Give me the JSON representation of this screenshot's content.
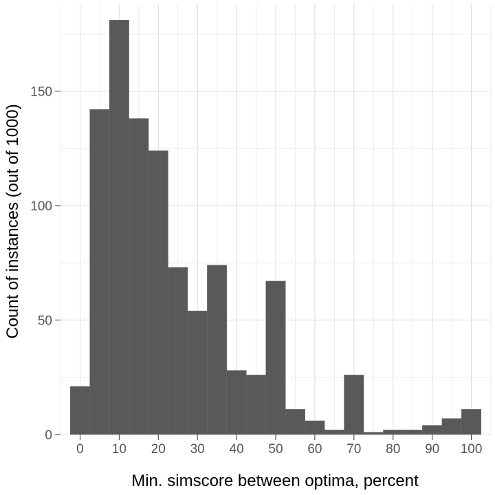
{
  "chart_data": {
    "type": "bar",
    "title": "",
    "xlabel": "Min. simscore between optima, percent",
    "ylabel": "Count of instances (out of 1000)",
    "x_ticks": [
      0,
      10,
      20,
      30,
      40,
      50,
      60,
      70,
      80,
      90,
      100
    ],
    "y_ticks": [
      0,
      50,
      100,
      150
    ],
    "xlim": [
      -5,
      105
    ],
    "ylim": [
      0,
      188
    ],
    "bin_width": 5,
    "bin_centers": [
      0,
      5,
      10,
      15,
      20,
      25,
      30,
      35,
      40,
      45,
      50,
      55,
      60,
      65,
      70,
      75,
      80,
      85,
      90,
      95,
      100
    ],
    "values": [
      21,
      142,
      181,
      138,
      124,
      73,
      54,
      74,
      28,
      26,
      67,
      11,
      6,
      2,
      26,
      1,
      2,
      2,
      4,
      7,
      11
    ],
    "grid": true,
    "legend": "none",
    "colors": {
      "bar": "#595959",
      "background": "#ffffff",
      "grid": "#dcdcdc"
    }
  }
}
